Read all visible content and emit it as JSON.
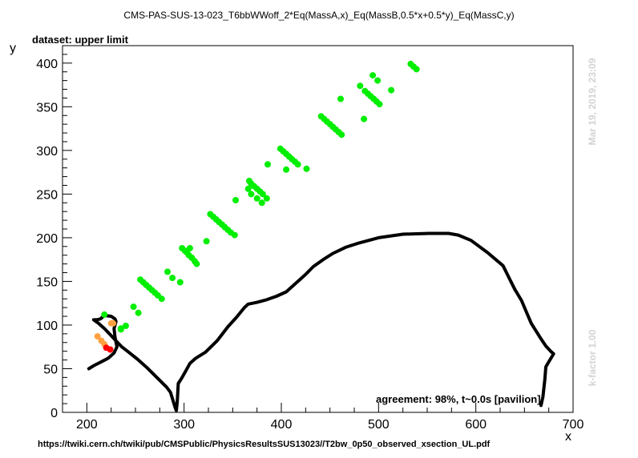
{
  "header": {
    "title": "CMS-PAS-SUS-13-023_T6bbWWoff_2*Eq(MassA,x)_Eq(MassB,0.5*x+0.5*y)_Eq(MassC,y)",
    "dataset": "dataset: upper limit"
  },
  "footer": {
    "url": "https://twiki.cern.ch/twiki/pub/CMSPublic/PhysicsResultsSUS13023//T2bw_0p50_observed_xsection_UL.pdf",
    "agreement": "agreement: 98%, t~0.0s [pavilion]"
  },
  "side": {
    "date": "Mar 19, 2019, 23:09",
    "kfactor": "k-factor 1.00"
  },
  "colors": {
    "green": "#00ee00",
    "orange": "#ffa040",
    "red": "#ff0000",
    "contour": "#000000",
    "side_text": "#d3d3d3"
  },
  "chart_data": {
    "type": "scatter",
    "xlabel": "x",
    "ylabel": "y",
    "xlim": [
      175,
      700
    ],
    "ylim": [
      0,
      420
    ],
    "xticks": [
      200,
      300,
      400,
      500,
      600,
      700
    ],
    "yticks": [
      0,
      50,
      100,
      150,
      200,
      250,
      300,
      350,
      400
    ],
    "grid": false,
    "series": [
      {
        "color": "#00ee00",
        "points": [
          [
            218,
            112
          ],
          [
            235,
            95
          ],
          [
            235,
            96
          ],
          [
            240,
            99
          ],
          [
            248,
            121
          ],
          [
            253,
            114
          ],
          [
            255,
            152
          ],
          [
            258,
            149
          ],
          [
            261,
            146
          ],
          [
            264,
            143
          ],
          [
            267,
            140
          ],
          [
            270,
            137
          ],
          [
            273,
            134
          ],
          [
            277,
            130
          ],
          [
            283,
            161
          ],
          [
            288,
            154
          ],
          [
            296,
            149
          ],
          [
            298,
            188
          ],
          [
            301,
            185
          ],
          [
            303,
            183
          ],
          [
            306,
            188
          ],
          [
            305,
            180
          ],
          [
            308,
            177
          ],
          [
            311,
            173
          ],
          [
            313,
            170
          ],
          [
            323,
            196
          ],
          [
            327,
            227
          ],
          [
            330,
            224
          ],
          [
            333,
            221
          ],
          [
            336,
            218
          ],
          [
            339,
            215
          ],
          [
            342,
            212
          ],
          [
            345,
            209
          ],
          [
            348,
            206
          ],
          [
            352,
            203
          ],
          [
            353,
            243
          ],
          [
            367,
            265
          ],
          [
            369,
            262
          ],
          [
            372,
            259
          ],
          [
            375,
            256
          ],
          [
            378,
            253
          ],
          [
            381,
            250
          ],
          [
            366,
            256
          ],
          [
            369,
            250
          ],
          [
            375,
            245
          ],
          [
            380,
            240
          ],
          [
            385,
            245
          ],
          [
            386,
            284
          ],
          [
            399,
            302
          ],
          [
            402,
            299
          ],
          [
            405,
            296
          ],
          [
            408,
            293
          ],
          [
            411,
            290
          ],
          [
            414,
            287
          ],
          [
            417,
            284
          ],
          [
            405,
            278
          ],
          [
            426,
            279
          ],
          [
            441,
            339
          ],
          [
            444,
            336
          ],
          [
            447,
            333
          ],
          [
            450,
            330
          ],
          [
            453,
            327
          ],
          [
            456,
            324
          ],
          [
            459,
            321
          ],
          [
            462,
            318
          ],
          [
            461,
            359
          ],
          [
            481,
            374
          ],
          [
            486,
            368
          ],
          [
            489,
            365
          ],
          [
            492,
            362
          ],
          [
            494,
            386
          ],
          [
            495,
            359
          ],
          [
            498,
            356
          ],
          [
            501,
            353
          ],
          [
            499,
            380
          ],
          [
            485,
            336
          ],
          [
            513,
            369
          ],
          [
            533,
            399
          ],
          [
            536,
            396
          ],
          [
            539,
            393
          ]
        ]
      },
      {
        "color": "#ffa040",
        "points": [
          [
            225,
            102
          ],
          [
            227,
            102
          ],
          [
            211,
            87
          ],
          [
            215,
            82
          ],
          [
            218,
            78
          ]
        ]
      },
      {
        "color": "#ff0000",
        "points": [
          [
            220,
            74
          ],
          [
            224,
            72
          ]
        ]
      }
    ],
    "contour": [
      [
        202,
        50
      ],
      [
        208,
        54
      ],
      [
        215,
        58
      ],
      [
        222,
        62
      ],
      [
        228,
        68
      ],
      [
        231,
        75
      ],
      [
        229,
        86
      ],
      [
        228,
        96
      ],
      [
        230,
        104
      ],
      [
        229,
        107
      ],
      [
        225,
        110
      ],
      [
        218,
        111
      ],
      [
        214,
        107
      ],
      [
        210,
        106
      ],
      [
        207,
        106
      ],
      [
        212,
        102
      ],
      [
        218,
        96
      ],
      [
        224,
        89
      ],
      [
        230,
        82
      ],
      [
        236,
        75
      ],
      [
        243,
        69
      ],
      [
        252,
        61
      ],
      [
        262,
        51
      ],
      [
        272,
        40
      ],
      [
        282,
        29
      ],
      [
        286,
        23
      ],
      [
        291,
        5
      ],
      [
        292,
        2
      ],
      [
        293,
        13
      ],
      [
        294,
        33
      ],
      [
        298,
        40
      ],
      [
        302,
        48
      ],
      [
        306,
        56
      ],
      [
        312,
        62
      ],
      [
        322,
        69
      ],
      [
        334,
        82
      ],
      [
        345,
        98
      ],
      [
        354,
        109
      ],
      [
        362,
        120
      ],
      [
        366,
        124
      ],
      [
        375,
        126
      ],
      [
        385,
        129
      ],
      [
        395,
        133
      ],
      [
        405,
        138
      ],
      [
        415,
        148
      ],
      [
        425,
        158
      ],
      [
        433,
        167
      ],
      [
        443,
        175
      ],
      [
        453,
        182
      ],
      [
        466,
        189
      ],
      [
        480,
        194
      ],
      [
        500,
        200
      ],
      [
        525,
        204
      ],
      [
        552,
        205
      ],
      [
        572,
        205
      ],
      [
        582,
        203
      ],
      [
        595,
        197
      ],
      [
        612,
        183
      ],
      [
        628,
        168
      ],
      [
        640,
        141
      ],
      [
        647,
        128
      ],
      [
        657,
        102
      ],
      [
        666,
        86
      ],
      [
        672,
        76
      ],
      [
        677,
        70
      ],
      [
        680,
        67
      ],
      [
        674,
        56
      ],
      [
        672,
        52
      ],
      [
        671,
        38
      ],
      [
        669,
        18
      ],
      [
        667,
        8
      ]
    ]
  }
}
